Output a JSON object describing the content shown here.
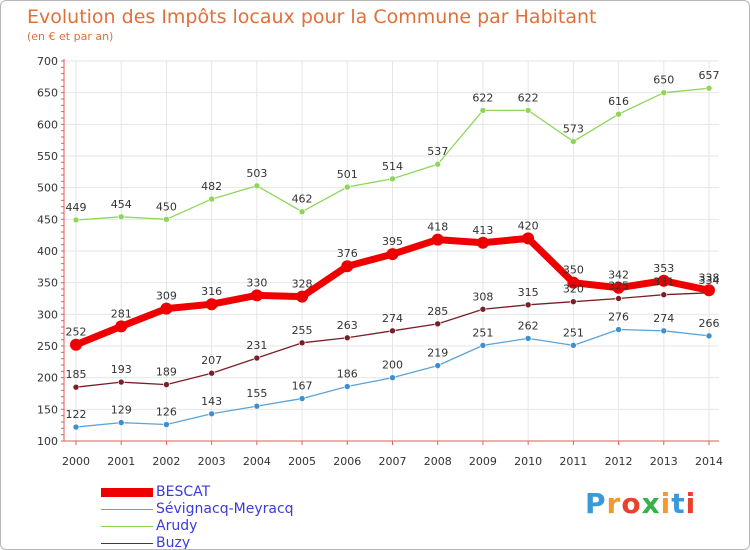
{
  "header": {
    "title": "Evolution des Impôts locaux pour la Commune par Habitant",
    "subtitle": "(en € et par an)"
  },
  "brand": {
    "letters": [
      "P",
      "r",
      "o",
      "x",
      "i",
      "t",
      "i"
    ],
    "letter_colors": [
      "#3a9ad9",
      "#f29a2e",
      "#e8412e",
      "#36b24a",
      "#f29a2e",
      "#3a9ad9",
      "#e8412e"
    ]
  },
  "colors": {
    "title": "#e0703a",
    "legend_text": "#3c3cd6",
    "axis": "#e65a5a",
    "grid": "#e6e6e6",
    "tick_label": "#333333",
    "value_label": "#333333"
  },
  "chart_data": {
    "type": "line",
    "title": "Evolution des Impôts locaux pour la Commune par Habitant",
    "subtitle": "(en € et par an)",
    "xlabel": "",
    "ylabel": "",
    "categories": [
      "2000",
      "2001",
      "2002",
      "2003",
      "2004",
      "2005",
      "2006",
      "2007",
      "2008",
      "2009",
      "2010",
      "2011",
      "2012",
      "2013",
      "2014"
    ],
    "ylim": [
      100,
      700
    ],
    "yticks": [
      100,
      150,
      200,
      250,
      300,
      350,
      400,
      450,
      500,
      550,
      600,
      650,
      700
    ],
    "grid": true,
    "legend_position": "bottom-left",
    "series": [
      {
        "name": "Arudy",
        "color": "#8ed65a",
        "marker": "#8ed65a",
        "weight": "thin",
        "values": [
          449,
          454,
          450,
          482,
          503,
          462,
          501,
          514,
          537,
          622,
          622,
          573,
          616,
          650,
          657
        ]
      },
      {
        "name": "Buzy",
        "color": "#7a1f2a",
        "marker": "#7a1f2a",
        "weight": "thin",
        "values": [
          185,
          193,
          189,
          207,
          231,
          255,
          263,
          274,
          285,
          308,
          315,
          320,
          325,
          331,
          334
        ]
      },
      {
        "name": "Sévignacq-Meyracq",
        "color": "#5ba3d9",
        "marker": "#3d8fcf",
        "weight": "thin",
        "values": [
          122,
          129,
          126,
          143,
          155,
          167,
          186,
          200,
          219,
          251,
          262,
          251,
          276,
          274,
          266
        ]
      },
      {
        "name": "BESCAT",
        "color": "#ee0000",
        "marker": "#ee0000",
        "weight": "thick",
        "values": [
          252,
          281,
          309,
          316,
          330,
          328,
          376,
          395,
          418,
          413,
          420,
          350,
          342,
          353,
          338
        ]
      }
    ],
    "legend_order": [
      "BESCAT",
      "Sévignacq-Meyracq",
      "Arudy",
      "Buzy"
    ]
  }
}
